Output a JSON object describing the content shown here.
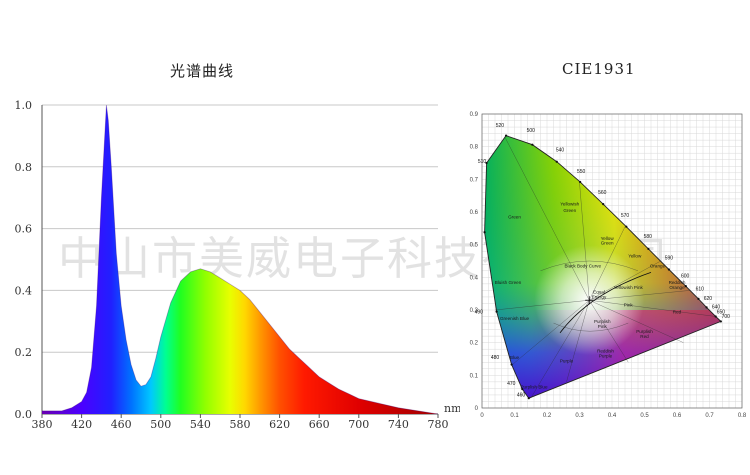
{
  "watermark": "中山市美威电子科技有限公司",
  "spectrum": {
    "title": "光谱曲线",
    "chart_data": {
      "type": "area",
      "title": "光谱曲线",
      "xlabel": "nm",
      "ylabel": "",
      "xlim": [
        380,
        780
      ],
      "ylim": [
        0,
        1.0
      ],
      "grid": true,
      "x_ticks": [
        "380",
        "420",
        "460",
        "500",
        "540",
        "580",
        "620",
        "660",
        "700",
        "740",
        "780"
      ],
      "y_ticks": [
        "0.0",
        "0.2",
        "0.4",
        "0.6",
        "0.8",
        "1.0"
      ],
      "x": [
        380,
        400,
        410,
        420,
        425,
        430,
        435,
        440,
        443,
        445,
        447,
        450,
        455,
        460,
        465,
        470,
        475,
        480,
        485,
        490,
        495,
        500,
        510,
        520,
        530,
        540,
        550,
        560,
        570,
        580,
        590,
        600,
        610,
        620,
        630,
        640,
        650,
        660,
        670,
        680,
        690,
        700,
        720,
        740,
        760,
        780
      ],
      "values": [
        0.01,
        0.01,
        0.02,
        0.04,
        0.07,
        0.15,
        0.35,
        0.7,
        0.88,
        1.0,
        0.95,
        0.8,
        0.52,
        0.35,
        0.24,
        0.16,
        0.11,
        0.09,
        0.095,
        0.12,
        0.18,
        0.25,
        0.36,
        0.43,
        0.46,
        0.47,
        0.46,
        0.44,
        0.42,
        0.4,
        0.37,
        0.33,
        0.29,
        0.25,
        0.21,
        0.18,
        0.15,
        0.12,
        0.1,
        0.08,
        0.065,
        0.05,
        0.035,
        0.02,
        0.01,
        0.0
      ]
    }
  },
  "cie": {
    "title": "CIE1931",
    "chart_data": {
      "type": "scatter",
      "title": "CIE1931",
      "xlim": [
        0,
        0.8
      ],
      "ylim": [
        0,
        0.9
      ],
      "grid": true,
      "x_ticks": [
        "0",
        "0.1",
        "0.2",
        "0.3",
        "0.4",
        "0.5",
        "0.6",
        "0.7",
        "0.8"
      ],
      "y_ticks": [
        "0",
        "0.1",
        "0.2",
        "0.3",
        "0.4",
        "0.5",
        "0.6",
        "0.7",
        "0.8",
        "0.9"
      ],
      "locus": [
        {
          "wl": "460",
          "x": 0.144,
          "y": 0.03
        },
        {
          "wl": "470",
          "x": 0.124,
          "y": 0.058
        },
        {
          "wl": "480",
          "x": 0.091,
          "y": 0.133
        },
        {
          "wl": "490",
          "x": 0.045,
          "y": 0.295
        },
        {
          "wl": "500",
          "x": 0.008,
          "y": 0.538
        },
        {
          "wl": "510",
          "x": 0.014,
          "y": 0.75
        },
        {
          "wl": "520",
          "x": 0.074,
          "y": 0.834
        },
        {
          "wl": "530",
          "x": 0.155,
          "y": 0.806
        },
        {
          "wl": "540",
          "x": 0.23,
          "y": 0.754
        },
        {
          "wl": "550",
          "x": 0.302,
          "y": 0.692
        },
        {
          "wl": "560",
          "x": 0.373,
          "y": 0.624
        },
        {
          "wl": "570",
          "x": 0.444,
          "y": 0.555
        },
        {
          "wl": "580",
          "x": 0.512,
          "y": 0.487
        },
        {
          "wl": "590",
          "x": 0.575,
          "y": 0.424
        },
        {
          "wl": "600",
          "x": 0.627,
          "y": 0.373
        },
        {
          "wl": "610",
          "x": 0.666,
          "y": 0.334
        },
        {
          "wl": "620",
          "x": 0.691,
          "y": 0.308
        },
        {
          "wl": "640",
          "x": 0.719,
          "y": 0.28
        },
        {
          "wl": "700",
          "x": 0.735,
          "y": 0.265
        }
      ],
      "wavelength_labels": [
        {
          "text": "520",
          "x": 0.055,
          "y": 0.86
        },
        {
          "text": "500",
          "x": 0.15,
          "y": 0.845
        },
        {
          "text": "540",
          "x": 0.24,
          "y": 0.785
        },
        {
          "text": "510",
          "x": 0.0,
          "y": 0.75
        },
        {
          "text": "550",
          "x": 0.305,
          "y": 0.72
        },
        {
          "text": "560",
          "x": 0.37,
          "y": 0.655
        },
        {
          "text": "570",
          "x": 0.44,
          "y": 0.585
        },
        {
          "text": "580",
          "x": 0.51,
          "y": 0.52
        },
        {
          "text": "590",
          "x": 0.575,
          "y": 0.455
        },
        {
          "text": "600",
          "x": 0.625,
          "y": 0.4
        },
        {
          "text": "610",
          "x": 0.67,
          "y": 0.36
        },
        {
          "text": "620",
          "x": 0.695,
          "y": 0.33
        },
        {
          "text": "640",
          "x": 0.72,
          "y": 0.305
        },
        {
          "text": "650",
          "x": 0.735,
          "y": 0.29
        },
        {
          "text": "700",
          "x": 0.75,
          "y": 0.275
        },
        {
          "text": "490",
          "x": -0.01,
          "y": 0.29
        },
        {
          "text": "480",
          "x": 0.04,
          "y": 0.15
        },
        {
          "text": "470",
          "x": 0.09,
          "y": 0.07
        },
        {
          "text": "460",
          "x": 0.12,
          "y": 0.035
        }
      ],
      "regions": [
        {
          "text": "Green",
          "x": 0.1,
          "y": 0.58
        },
        {
          "text": "Yellowish",
          "x": 0.27,
          "y": 0.62
        },
        {
          "text": "Green",
          "x": 0.27,
          "y": 0.6
        },
        {
          "text": "Yellow",
          "x": 0.385,
          "y": 0.515
        },
        {
          "text": "Green",
          "x": 0.385,
          "y": 0.5
        },
        {
          "text": "Yellow",
          "x": 0.47,
          "y": 0.46
        },
        {
          "text": "Orange",
          "x": 0.54,
          "y": 0.43
        },
        {
          "text": "Reddish",
          "x": 0.6,
          "y": 0.38
        },
        {
          "text": "Orange",
          "x": 0.6,
          "y": 0.365
        },
        {
          "text": "Bluish Green",
          "x": 0.08,
          "y": 0.38
        },
        {
          "text": "Black Body Curve",
          "x": 0.31,
          "y": 0.43
        },
        {
          "text": "Yellowish Pink",
          "x": 0.45,
          "y": 0.365
        },
        {
          "text": "Pink",
          "x": 0.45,
          "y": 0.31
        },
        {
          "text": "Equal",
          "x": 0.36,
          "y": 0.35
        },
        {
          "text": "Energy",
          "x": 0.36,
          "y": 0.335
        },
        {
          "text": "Red",
          "x": 0.6,
          "y": 0.29
        },
        {
          "text": "Greenish Blue",
          "x": 0.1,
          "y": 0.27
        },
        {
          "text": "Purplish",
          "x": 0.37,
          "y": 0.26
        },
        {
          "text": "Pink",
          "x": 0.37,
          "y": 0.245
        },
        {
          "text": "Purplish",
          "x": 0.5,
          "y": 0.23
        },
        {
          "text": "Red",
          "x": 0.5,
          "y": 0.215
        },
        {
          "text": "Blue",
          "x": 0.1,
          "y": 0.15
        },
        {
          "text": "Purple",
          "x": 0.26,
          "y": 0.14
        },
        {
          "text": "Reddish",
          "x": 0.38,
          "y": 0.17
        },
        {
          "text": "Purple",
          "x": 0.38,
          "y": 0.155
        },
        {
          "text": "Purplish Blue",
          "x": 0.16,
          "y": 0.06
        }
      ],
      "white_point": {
        "x": 0.33,
        "y": 0.33
      }
    }
  }
}
